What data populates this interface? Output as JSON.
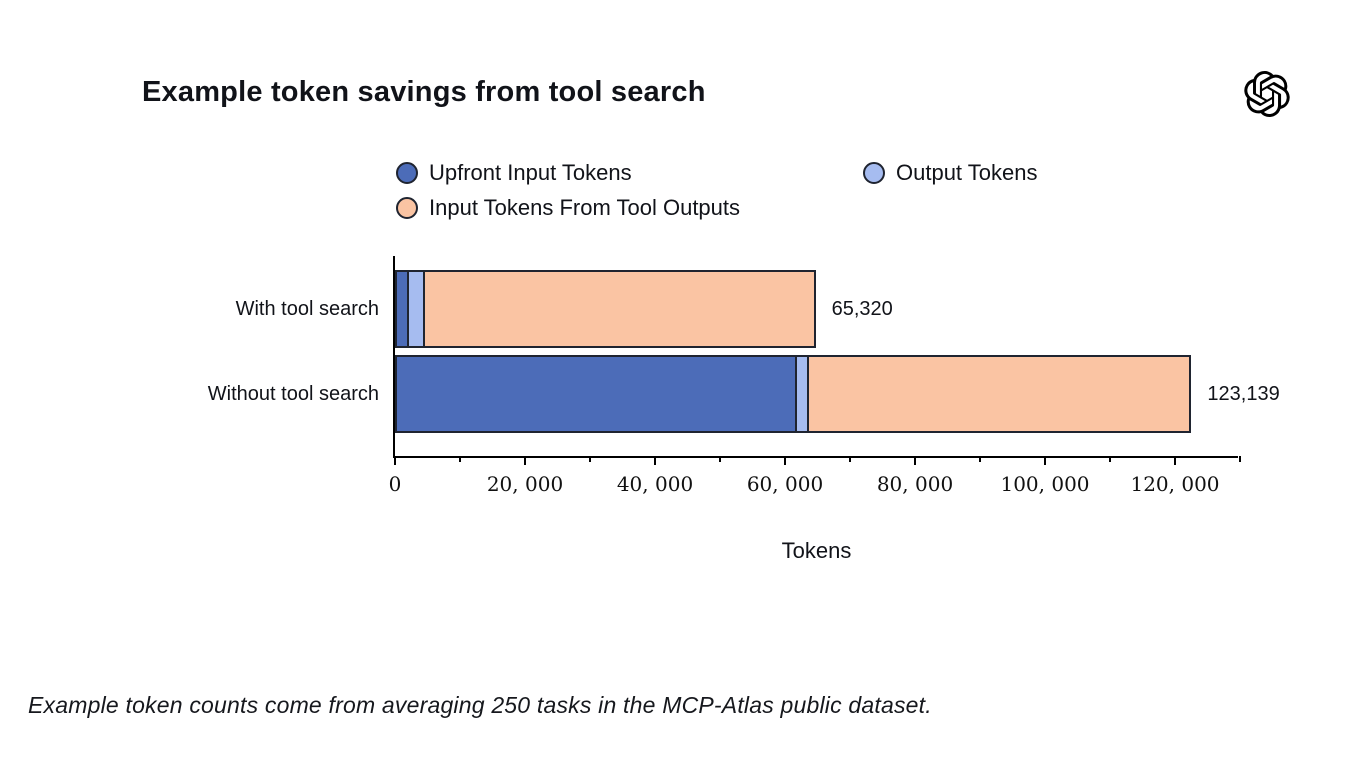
{
  "header": {
    "title": "Example token savings from tool search",
    "logo_name": "openai-logo"
  },
  "chart_data": {
    "type": "bar",
    "orientation": "horizontal",
    "stacked": true,
    "title": "Example token savings from tool search",
    "categories": [
      "With tool search",
      "Without tool search"
    ],
    "series": [
      {
        "name": "Upfront Input Tokens",
        "color": "#4c6cb8",
        "values": [
          2200,
          61800
        ]
      },
      {
        "name": "Output Tokens",
        "color": "#a6bcf0",
        "values": [
          2700,
          2200
        ]
      },
      {
        "name": "Input Tokens From Tool Outputs",
        "color": "#fac4a3",
        "values": [
          60420,
          59139
        ]
      }
    ],
    "totals": [
      "65,320",
      "123,139"
    ],
    "xlabel": "Tokens",
    "ylabel": "",
    "xlim": [
      0,
      130000
    ],
    "xticks": [
      0,
      20000,
      40000,
      60000,
      80000,
      100000,
      120000
    ],
    "xtick_labels": [
      "0",
      "20, 000",
      "40, 000",
      "60, 000",
      "80, 000",
      "100, 000",
      "120, 000"
    ],
    "minor_tick_step": 10000,
    "grid": false,
    "legend_position": "top",
    "bar_edge_color": "#1f2430"
  },
  "footnote": "Example token counts come from averaging 250 tasks in the MCP-Atlas public dataset."
}
